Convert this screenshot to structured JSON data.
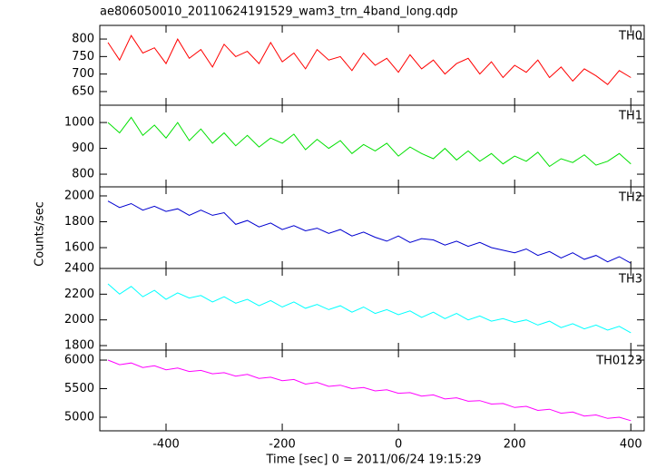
{
  "chart_data": [
    {
      "type": "line",
      "title": "ae806050010_20110624191529_wam3_trn_4band_long.qdp",
      "label": "TH0",
      "color": "#ff0000",
      "x": [
        -500,
        -480,
        -460,
        -440,
        -420,
        -400,
        -380,
        -360,
        -340,
        -320,
        -300,
        -280,
        -260,
        -240,
        -220,
        -200,
        -180,
        -160,
        -140,
        -120,
        -100,
        -80,
        -60,
        -40,
        -20,
        0,
        20,
        40,
        60,
        80,
        100,
        120,
        140,
        160,
        180,
        200,
        220,
        240,
        260,
        280,
        300,
        320,
        340,
        360,
        380,
        400
      ],
      "values": [
        790,
        740,
        810,
        760,
        775,
        730,
        800,
        745,
        770,
        720,
        785,
        750,
        765,
        730,
        790,
        735,
        760,
        715,
        770,
        740,
        750,
        710,
        760,
        725,
        745,
        705,
        755,
        715,
        740,
        700,
        730,
        745,
        700,
        735,
        690,
        725,
        705,
        740,
        690,
        720,
        680,
        715,
        695,
        670,
        710,
        690
      ],
      "xlim": [
        -514,
        423
      ],
      "ylim": [
        611,
        839
      ],
      "yticks": [
        650,
        700,
        750,
        800
      ]
    },
    {
      "type": "line",
      "label": "TH1",
      "color": "#00e000",
      "x": [
        -500,
        -480,
        -460,
        -440,
        -420,
        -400,
        -380,
        -360,
        -340,
        -320,
        -300,
        -280,
        -260,
        -240,
        -220,
        -200,
        -180,
        -160,
        -140,
        -120,
        -100,
        -80,
        -60,
        -40,
        -20,
        0,
        20,
        40,
        60,
        80,
        100,
        120,
        140,
        160,
        180,
        200,
        220,
        240,
        260,
        280,
        300,
        320,
        340,
        360,
        380,
        400
      ],
      "values": [
        1000,
        960,
        1020,
        950,
        990,
        940,
        1000,
        930,
        975,
        920,
        960,
        910,
        950,
        905,
        940,
        920,
        955,
        895,
        935,
        900,
        930,
        880,
        915,
        890,
        920,
        870,
        905,
        880,
        860,
        900,
        855,
        890,
        850,
        880,
        840,
        870,
        850,
        885,
        830,
        860,
        845,
        875,
        835,
        850,
        880,
        840
      ],
      "xlim": [
        -514,
        423
      ],
      "ylim": [
        751,
        1067
      ],
      "yticks": [
        800,
        900,
        1000
      ]
    },
    {
      "type": "line",
      "label": "TH2",
      "color": "#0000d0",
      "ylabel": "Counts/sec",
      "x": [
        -500,
        -480,
        -460,
        -440,
        -420,
        -400,
        -380,
        -360,
        -340,
        -320,
        -300,
        -280,
        -260,
        -240,
        -220,
        -200,
        -180,
        -160,
        -140,
        -120,
        -100,
        -80,
        -60,
        -40,
        -20,
        0,
        20,
        40,
        60,
        80,
        100,
        120,
        140,
        160,
        180,
        200,
        220,
        240,
        260,
        280,
        300,
        320,
        340,
        360,
        380,
        400
      ],
      "values": [
        1960,
        1910,
        1940,
        1890,
        1920,
        1880,
        1900,
        1850,
        1890,
        1850,
        1870,
        1780,
        1810,
        1760,
        1790,
        1740,
        1770,
        1730,
        1750,
        1710,
        1740,
        1690,
        1720,
        1680,
        1650,
        1690,
        1640,
        1670,
        1660,
        1620,
        1650,
        1610,
        1640,
        1600,
        1580,
        1560,
        1590,
        1540,
        1570,
        1520,
        1560,
        1510,
        1540,
        1490,
        1530,
        1480
      ],
      "xlim": [
        -514,
        423
      ],
      "ylim": [
        1439,
        2070
      ],
      "yticks": [
        1600,
        1800,
        2000
      ]
    },
    {
      "type": "line",
      "label": "TH3",
      "color": "#00ffff",
      "x": [
        -500,
        -480,
        -460,
        -440,
        -420,
        -400,
        -380,
        -360,
        -340,
        -320,
        -300,
        -280,
        -260,
        -240,
        -220,
        -200,
        -180,
        -160,
        -140,
        -120,
        -100,
        -80,
        -60,
        -40,
        -20,
        0,
        20,
        40,
        60,
        80,
        100,
        120,
        140,
        160,
        180,
        200,
        220,
        240,
        260,
        280,
        300,
        320,
        340,
        360,
        380,
        400
      ],
      "values": [
        2280,
        2200,
        2260,
        2180,
        2230,
        2160,
        2210,
        2170,
        2190,
        2140,
        2180,
        2130,
        2160,
        2110,
        2150,
        2100,
        2140,
        2090,
        2120,
        2080,
        2110,
        2060,
        2100,
        2050,
        2080,
        2040,
        2070,
        2020,
        2060,
        2010,
        2050,
        2000,
        2030,
        1990,
        2010,
        1980,
        2000,
        1960,
        1990,
        1940,
        1970,
        1930,
        1960,
        1920,
        1950,
        1900
      ],
      "xlim": [
        -514,
        423
      ],
      "ylim": [
        1765,
        2400
      ],
      "yticks": [
        1800,
        2000,
        2200,
        2400
      ]
    },
    {
      "type": "line",
      "label": "TH0123",
      "color": "#ff00ff",
      "xlabel": "Time [sec] 0 = 2011/06/24 19:15:29",
      "x": [
        -500,
        -480,
        -460,
        -440,
        -420,
        -400,
        -380,
        -360,
        -340,
        -320,
        -300,
        -280,
        -260,
        -240,
        -220,
        -200,
        -180,
        -160,
        -140,
        -120,
        -100,
        -80,
        -60,
        -40,
        -20,
        0,
        20,
        40,
        60,
        80,
        100,
        120,
        140,
        160,
        180,
        200,
        220,
        240,
        260,
        280,
        300,
        320,
        340,
        360,
        380,
        400
      ],
      "values": [
        6000,
        5920,
        5950,
        5870,
        5900,
        5830,
        5860,
        5800,
        5820,
        5760,
        5780,
        5720,
        5750,
        5680,
        5700,
        5640,
        5660,
        5580,
        5610,
        5540,
        5560,
        5500,
        5520,
        5460,
        5480,
        5420,
        5430,
        5370,
        5390,
        5320,
        5340,
        5280,
        5290,
        5230,
        5240,
        5170,
        5190,
        5120,
        5140,
        5070,
        5090,
        5020,
        5040,
        4980,
        5000,
        4940
      ],
      "xlim": [
        -514,
        423
      ],
      "ylim": [
        4762,
        6175
      ],
      "yticks": [
        5000,
        5500,
        6000
      ],
      "xticks": [
        -400,
        -200,
        0,
        200,
        400
      ]
    }
  ]
}
